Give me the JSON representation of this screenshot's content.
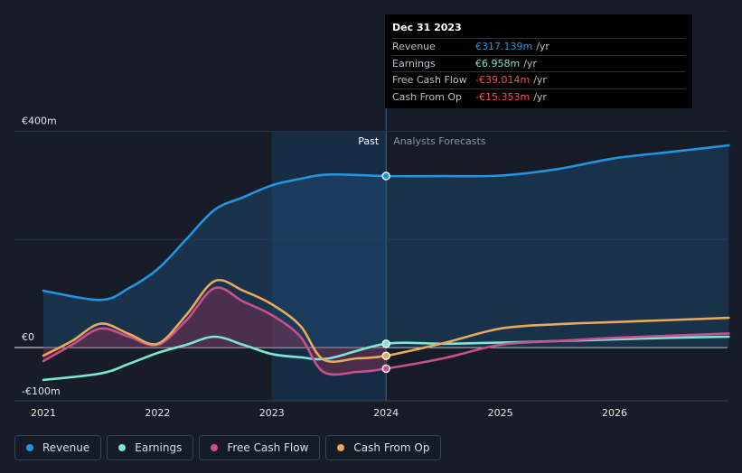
{
  "chart_data": {
    "type": "line",
    "x_range": [
      2021,
      2027
    ],
    "ylim": [
      -100,
      400
    ],
    "y_ticks": [
      {
        "value": 400,
        "label": "€400m"
      },
      {
        "value": 0,
        "label": "€0"
      },
      {
        "value": -100,
        "label": "-€100m"
      }
    ],
    "x_ticks": [
      "2021",
      "2022",
      "2023",
      "2024",
      "2025",
      "2026"
    ],
    "divider_x": 2024,
    "past_label": "Past",
    "forecast_label": "Analysts Forecasts",
    "series": [
      {
        "name": "Revenue",
        "color": "#2394df",
        "points": [
          [
            2021,
            105
          ],
          [
            2021.5,
            88
          ],
          [
            2021.75,
            110
          ],
          [
            2022,
            145
          ],
          [
            2022.25,
            200
          ],
          [
            2022.5,
            255
          ],
          [
            2022.75,
            278
          ],
          [
            2023,
            300
          ],
          [
            2023.25,
            312
          ],
          [
            2023.5,
            320
          ],
          [
            2024,
            317.139
          ],
          [
            2024.5,
            317
          ],
          [
            2025,
            318
          ],
          [
            2025.5,
            330
          ],
          [
            2026,
            350
          ],
          [
            2026.5,
            362
          ],
          [
            2027,
            374
          ]
        ]
      },
      {
        "name": "Earnings",
        "color": "#7ce5d5",
        "points": [
          [
            2021,
            -60
          ],
          [
            2021.5,
            -48
          ],
          [
            2021.75,
            -30
          ],
          [
            2022,
            -10
          ],
          [
            2022.25,
            5
          ],
          [
            2022.5,
            20
          ],
          [
            2022.75,
            5
          ],
          [
            2023,
            -12
          ],
          [
            2023.25,
            -18
          ],
          [
            2023.5,
            -20
          ],
          [
            2024,
            6.958
          ],
          [
            2024.5,
            7
          ],
          [
            2025,
            9
          ],
          [
            2025.5,
            12
          ],
          [
            2026,
            15
          ],
          [
            2026.5,
            18
          ],
          [
            2027,
            20
          ]
        ]
      },
      {
        "name": "Free Cash Flow",
        "color": "#c9508c",
        "points": [
          [
            2021,
            -25
          ],
          [
            2021.25,
            5
          ],
          [
            2021.5,
            35
          ],
          [
            2021.75,
            20
          ],
          [
            2022,
            5
          ],
          [
            2022.25,
            50
          ],
          [
            2022.5,
            110
          ],
          [
            2022.75,
            85
          ],
          [
            2023,
            60
          ],
          [
            2023.25,
            20
          ],
          [
            2023.45,
            -45
          ],
          [
            2023.75,
            -45
          ],
          [
            2024,
            -39.014
          ],
          [
            2024.5,
            -20
          ],
          [
            2025,
            5
          ],
          [
            2025.5,
            12
          ],
          [
            2026,
            18
          ],
          [
            2026.5,
            22
          ],
          [
            2027,
            26
          ]
        ]
      },
      {
        "name": "Cash From Op",
        "color": "#e8a95b",
        "points": [
          [
            2021,
            -15
          ],
          [
            2021.25,
            12
          ],
          [
            2021.5,
            44
          ],
          [
            2021.75,
            25
          ],
          [
            2022,
            7
          ],
          [
            2022.25,
            60
          ],
          [
            2022.5,
            123
          ],
          [
            2022.75,
            105
          ],
          [
            2023,
            80
          ],
          [
            2023.25,
            40
          ],
          [
            2023.45,
            -22
          ],
          [
            2023.75,
            -20
          ],
          [
            2024,
            -15.353
          ],
          [
            2024.5,
            8
          ],
          [
            2025,
            35
          ],
          [
            2025.5,
            43
          ],
          [
            2026,
            47
          ],
          [
            2026.5,
            51
          ],
          [
            2027,
            55
          ]
        ]
      }
    ],
    "tooltip": {
      "date": "Dec 31 2023",
      "rows": [
        {
          "label": "Revenue",
          "value": "€317.139m",
          "unit": "/yr",
          "color": "#2394df"
        },
        {
          "label": "Earnings",
          "value": "€6.958m",
          "unit": "/yr",
          "color": "#7ce5d5"
        },
        {
          "label": "Free Cash Flow",
          "value": "-€39.014m",
          "unit": "/yr",
          "color": "#ff4d4d"
        },
        {
          "label": "Cash From Op",
          "value": "-€15.353m",
          "unit": "/yr",
          "color": "#ff4d4d"
        }
      ]
    }
  },
  "legend": [
    {
      "label": "Revenue",
      "color": "#2394df"
    },
    {
      "label": "Earnings",
      "color": "#7ce5d5"
    },
    {
      "label": "Free Cash Flow",
      "color": "#c9508c"
    },
    {
      "label": "Cash From Op",
      "color": "#e8a95b"
    }
  ]
}
